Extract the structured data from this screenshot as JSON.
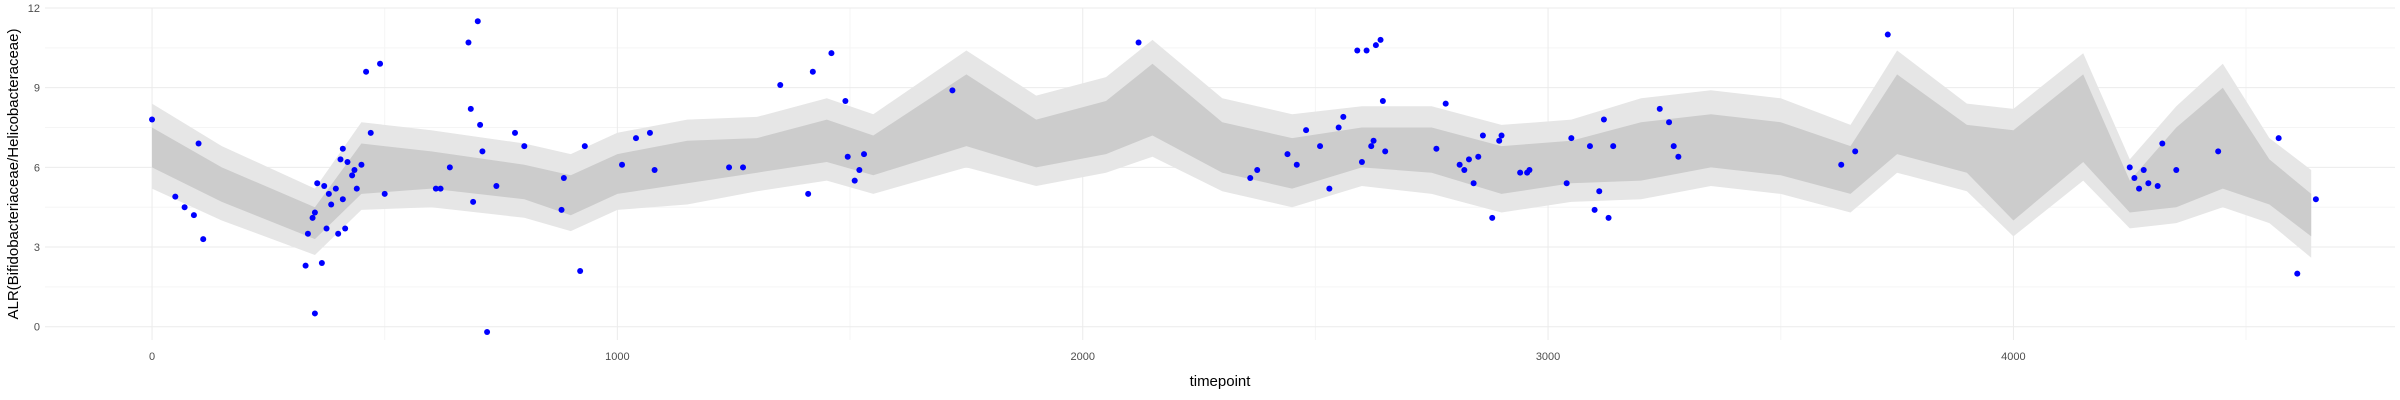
{
  "chart_data": {
    "type": "scatter",
    "xlabel": "timepoint",
    "ylabel": "ALR(Bifidobacteriaceae/Helicobacteraceae)",
    "xlim": [
      -230,
      4820
    ],
    "ylim": [
      -0.5,
      12
    ],
    "x_ticks": [
      0,
      1000,
      2000,
      3000,
      4000
    ],
    "y_ticks": [
      0,
      3,
      6,
      9,
      12
    ],
    "grid": true,
    "colors": {
      "points": "#0000ff",
      "inner_band": "#cccccc",
      "outer_band": "#e6e6e6",
      "grid_major": "#ebebeb",
      "grid_minor": "#f5f5f5"
    },
    "band": {
      "x": [
        0,
        150,
        350,
        450,
        600,
        800,
        900,
        1000,
        1150,
        1300,
        1450,
        1550,
        1750,
        1900,
        2050,
        2150,
        2300,
        2450,
        2600,
        2750,
        2900,
        3050,
        3200,
        3350,
        3500,
        3650,
        3750,
        3900,
        4000,
        4150,
        4250,
        4350,
        4450,
        4550,
        4640
      ],
      "inner_lo": [
        6.0,
        4.7,
        3.3,
        5.0,
        5.2,
        4.8,
        4.2,
        5.0,
        5.4,
        5.8,
        6.2,
        5.7,
        6.8,
        6.0,
        6.5,
        7.2,
        5.8,
        5.2,
        6.0,
        5.8,
        5.0,
        5.4,
        5.5,
        6.0,
        5.7,
        5.0,
        6.5,
        5.8,
        4.0,
        6.2,
        4.3,
        4.5,
        5.2,
        4.6,
        3.4
      ],
      "inner_hi": [
        7.5,
        6.0,
        4.5,
        6.9,
        6.6,
        6.1,
        5.7,
        6.5,
        7.0,
        7.1,
        7.8,
        7.2,
        9.5,
        7.8,
        8.5,
        9.9,
        7.7,
        7.1,
        7.5,
        7.5,
        6.8,
        7.0,
        7.7,
        8.0,
        7.7,
        6.8,
        9.5,
        7.6,
        7.4,
        9.5,
        5.5,
        7.5,
        9.0,
        6.3,
        5.0
      ],
      "outer_lo": [
        5.2,
        4.0,
        2.7,
        4.4,
        4.5,
        4.1,
        3.6,
        4.4,
        4.6,
        5.1,
        5.5,
        5.0,
        6.0,
        5.3,
        5.8,
        6.4,
        5.1,
        4.5,
        5.3,
        5.0,
        4.3,
        4.7,
        4.8,
        5.3,
        5.0,
        4.3,
        5.8,
        5.1,
        3.4,
        5.5,
        3.7,
        3.9,
        4.5,
        3.9,
        2.6
      ],
      "outer_hi": [
        8.4,
        6.8,
        5.2,
        7.7,
        7.4,
        6.9,
        6.5,
        7.3,
        7.8,
        7.9,
        8.6,
        8.0,
        10.4,
        8.7,
        9.4,
        10.8,
        8.6,
        8.0,
        8.3,
        8.3,
        7.6,
        7.8,
        8.6,
        8.9,
        8.6,
        7.6,
        10.4,
        8.4,
        8.2,
        10.3,
        6.3,
        8.3,
        9.9,
        7.1,
        5.9
      ]
    },
    "points": [
      [
        0,
        7.8
      ],
      [
        50,
        4.9
      ],
      [
        70,
        4.5
      ],
      [
        90,
        4.2
      ],
      [
        100,
        6.9
      ],
      [
        110,
        3.3
      ],
      [
        330,
        2.3
      ],
      [
        335,
        3.5
      ],
      [
        345,
        4.1
      ],
      [
        350,
        4.3
      ],
      [
        350,
        0.5
      ],
      [
        355,
        5.4
      ],
      [
        365,
        2.4
      ],
      [
        370,
        5.3
      ],
      [
        375,
        3.7
      ],
      [
        380,
        5.0
      ],
      [
        385,
        4.6
      ],
      [
        395,
        5.2
      ],
      [
        400,
        3.5
      ],
      [
        405,
        6.3
      ],
      [
        410,
        6.7
      ],
      [
        410,
        4.8
      ],
      [
        415,
        3.7
      ],
      [
        420,
        6.2
      ],
      [
        430,
        5.7
      ],
      [
        435,
        5.9
      ],
      [
        440,
        5.2
      ],
      [
        450,
        6.1
      ],
      [
        460,
        9.6
      ],
      [
        470,
        7.3
      ],
      [
        490,
        9.9
      ],
      [
        500,
        5.0
      ],
      [
        610,
        5.2
      ],
      [
        620,
        5.2
      ],
      [
        640,
        6.0
      ],
      [
        680,
        10.7
      ],
      [
        685,
        8.2
      ],
      [
        690,
        4.7
      ],
      [
        700,
        11.5
      ],
      [
        705,
        7.6
      ],
      [
        710,
        6.6
      ],
      [
        720,
        -0.2
      ],
      [
        740,
        5.3
      ],
      [
        780,
        7.3
      ],
      [
        800,
        6.8
      ],
      [
        880,
        4.4
      ],
      [
        885,
        5.6
      ],
      [
        920,
        2.1
      ],
      [
        930,
        6.8
      ],
      [
        1010,
        6.1
      ],
      [
        1040,
        7.1
      ],
      [
        1070,
        7.3
      ],
      [
        1080,
        5.9
      ],
      [
        1240,
        6.0
      ],
      [
        1270,
        6.0
      ],
      [
        1350,
        9.1
      ],
      [
        1410,
        5.0
      ],
      [
        1420,
        9.6
      ],
      [
        1460,
        10.3
      ],
      [
        1490,
        8.5
      ],
      [
        1495,
        6.4
      ],
      [
        1510,
        5.5
      ],
      [
        1520,
        5.9
      ],
      [
        1530,
        6.5
      ],
      [
        1720,
        8.9
      ],
      [
        2120,
        10.7
      ],
      [
        2360,
        5.6
      ],
      [
        2375,
        5.9
      ],
      [
        2440,
        6.5
      ],
      [
        2460,
        6.1
      ],
      [
        2480,
        7.4
      ],
      [
        2510,
        6.8
      ],
      [
        2530,
        5.2
      ],
      [
        2550,
        7.5
      ],
      [
        2560,
        7.9
      ],
      [
        2590,
        10.4
      ],
      [
        2600,
        6.2
      ],
      [
        2610,
        10.4
      ],
      [
        2620,
        6.8
      ],
      [
        2625,
        7.0
      ],
      [
        2630,
        10.6
      ],
      [
        2640,
        10.8
      ],
      [
        2645,
        8.5
      ],
      [
        2650,
        6.6
      ],
      [
        2760,
        6.7
      ],
      [
        2780,
        8.4
      ],
      [
        2810,
        6.1
      ],
      [
        2820,
        5.9
      ],
      [
        2830,
        6.3
      ],
      [
        2840,
        5.4
      ],
      [
        2850,
        6.4
      ],
      [
        2860,
        7.2
      ],
      [
        2880,
        4.1
      ],
      [
        2895,
        7.0
      ],
      [
        2900,
        7.2
      ],
      [
        2940,
        5.8
      ],
      [
        2955,
        5.8
      ],
      [
        2960,
        5.9
      ],
      [
        3040,
        5.4
      ],
      [
        3050,
        7.1
      ],
      [
        3090,
        6.8
      ],
      [
        3100,
        4.4
      ],
      [
        3110,
        5.1
      ],
      [
        3120,
        7.8
      ],
      [
        3130,
        4.1
      ],
      [
        3140,
        6.8
      ],
      [
        3240,
        8.2
      ],
      [
        3260,
        7.7
      ],
      [
        3270,
        6.8
      ],
      [
        3280,
        6.4
      ],
      [
        3630,
        6.1
      ],
      [
        3660,
        6.6
      ],
      [
        3730,
        11.0
      ],
      [
        4250,
        6.0
      ],
      [
        4260,
        5.6
      ],
      [
        4270,
        5.2
      ],
      [
        4280,
        5.9
      ],
      [
        4290,
        5.4
      ],
      [
        4310,
        5.3
      ],
      [
        4320,
        6.9
      ],
      [
        4350,
        5.9
      ],
      [
        4440,
        6.6
      ],
      [
        4570,
        7.1
      ],
      [
        4610,
        2.0
      ],
      [
        4650,
        4.8
      ]
    ]
  }
}
